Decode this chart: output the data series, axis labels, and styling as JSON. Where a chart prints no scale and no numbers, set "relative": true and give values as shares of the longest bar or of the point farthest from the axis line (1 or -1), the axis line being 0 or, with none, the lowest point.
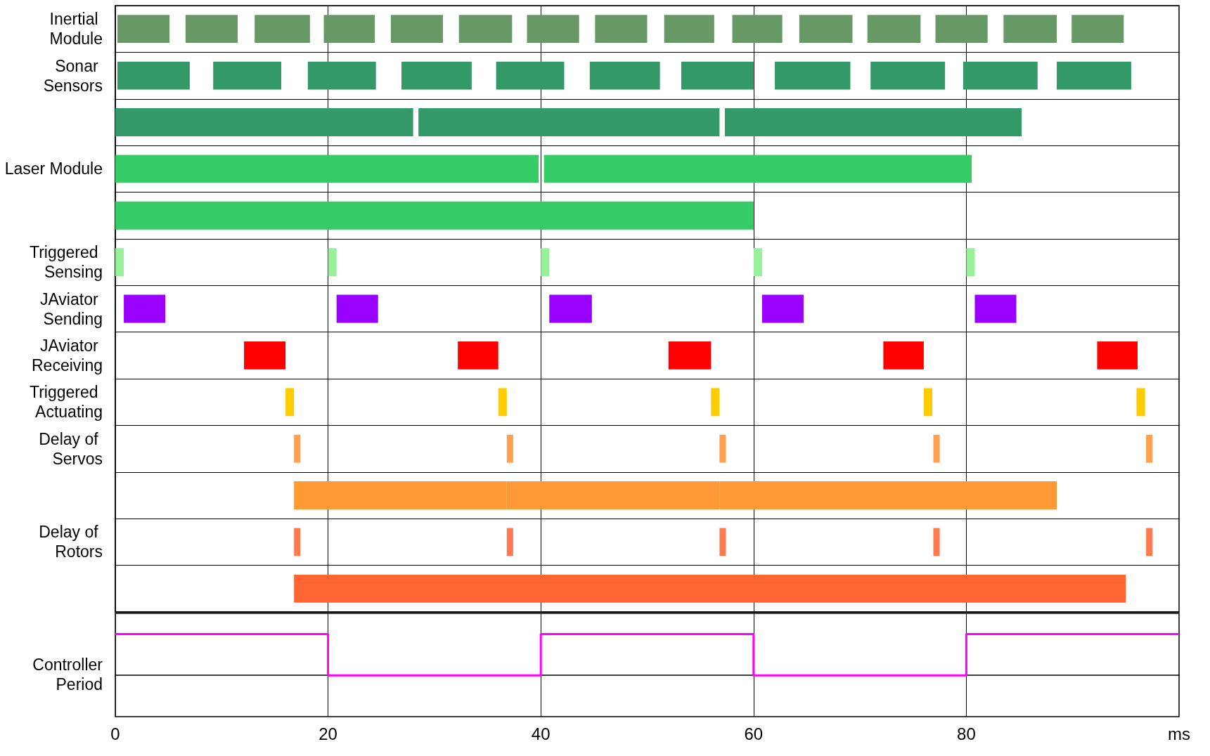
{
  "chart_data": [
    {
      "type": "bar",
      "orientation": "horizontal",
      "categories": [
        "Inertial Module",
        "Sonar Sensors",
        null,
        "Laser Module",
        null,
        "Triggered Sensing",
        "JAviator Sending",
        "JAviator Receiving",
        "Triggered Actuating",
        "Delay of Servos",
        null,
        "Delay of Rotors",
        null
      ],
      "series": [
        {
          "values": [
            4.9,
            6.8,
            28,
            39.8,
            60,
            0.8,
            3.9,
            3.9,
            0.8,
            0.6,
            20,
            0.6,
            78.2
          ],
          "base": [
            0.2,
            0.2,
            0,
            0,
            0,
            0,
            0.8,
            12.1,
            16,
            16.8,
            16.8,
            16.8,
            16.8
          ],
          "colors": [
            "#679966",
            "#339966",
            "#339966",
            "#33cc66",
            "#33cc66",
            "#98f098",
            "#9900ff",
            "#ff0000",
            "#ffcc00",
            "#ffa050",
            "#ff9933",
            "#ff7a50",
            "#ff6633"
          ]
        },
        {
          "values": [
            4.9,
            6.4,
            28.3,
            40.2,
            null,
            0.8,
            3.9,
            3.8,
            0.8,
            0.6,
            20,
            0.6,
            null
          ],
          "base": [
            6.6,
            9.2,
            28.5,
            40.3,
            null,
            20,
            20.8,
            32.2,
            36,
            36.8,
            36.8,
            36.8,
            null
          ],
          "colors": [
            "#679966",
            "#339966",
            "#339966",
            "#33cc66",
            null,
            "#98f098",
            "#9900ff",
            "#ff0000",
            "#ffcc00",
            "#ffa050",
            "#ff9933",
            "#ff7a50",
            null
          ]
        },
        {
          "values": [
            5.2,
            6.4,
            27.9,
            null,
            null,
            0.8,
            4,
            4,
            0.8,
            0.6,
            31.7,
            0.6,
            null
          ],
          "base": [
            13.1,
            18.1,
            57.3,
            null,
            null,
            40,
            40.8,
            52,
            56,
            56.8,
            56.8,
            56.8,
            null
          ],
          "colors": [
            "#679966",
            "#339966",
            "#339966",
            null,
            null,
            "#98f098",
            "#9900ff",
            "#ff0000",
            "#ffcc00",
            "#ffa050",
            "#ff9933",
            "#ff7a50",
            null
          ]
        },
        {
          "values": [
            4.8,
            6.6,
            null,
            null,
            null,
            0.8,
            3.9,
            3.8,
            0.8,
            0.6,
            null,
            0.6,
            null
          ],
          "base": [
            19.6,
            26.9,
            null,
            null,
            null,
            60,
            60.8,
            72.2,
            76,
            76.9,
            null,
            76.9,
            null
          ],
          "colors": [
            "#679966",
            "#339966",
            null,
            null,
            null,
            "#98f098",
            "#9900ff",
            "#ff0000",
            "#ffcc00",
            "#ffa050",
            null,
            "#ff7a50",
            null
          ]
        },
        {
          "values": [
            4.9,
            6.4,
            null,
            null,
            null,
            0.8,
            3.9,
            3.8,
            0.8,
            0.6,
            null,
            0.6,
            null
          ],
          "base": [
            25.9,
            35.8,
            null,
            null,
            null,
            80,
            80.8,
            92.3,
            96,
            96.9,
            null,
            96.9,
            null
          ],
          "colors": [
            "#679966",
            "#339966",
            null,
            null,
            null,
            "#98f098",
            "#9900ff",
            "#ff0000",
            "#ffcc00",
            "#ffa050",
            null,
            "#ff7a50",
            null
          ]
        },
        {
          "values": [
            5,
            6.6,
            null,
            null,
            null,
            null,
            null,
            null,
            null,
            null,
            null,
            null,
            null
          ],
          "base": [
            32.3,
            44.6,
            null,
            null,
            null,
            null,
            null,
            null,
            null,
            null,
            null,
            null,
            null
          ],
          "colors": [
            "#679966",
            "#339966",
            null,
            null,
            null,
            null,
            null,
            null,
            null,
            null,
            null,
            null,
            null
          ]
        },
        {
          "values": [
            4.9,
            6.8,
            null,
            null,
            null,
            null,
            null,
            null,
            null,
            null,
            null,
            null,
            null
          ],
          "base": [
            38.7,
            53.2,
            null,
            null,
            null,
            null,
            null,
            null,
            null,
            null,
            null,
            null,
            null
          ],
          "colors": [
            "#679966",
            "#339966",
            null,
            null,
            null,
            null,
            null,
            null,
            null,
            null,
            null,
            null,
            null
          ]
        },
        {
          "values": [
            4.9,
            7.1,
            null,
            null,
            null,
            null,
            null,
            null,
            null,
            null,
            null,
            null,
            null
          ],
          "base": [
            45.1,
            62,
            null,
            null,
            null,
            null,
            null,
            null,
            null,
            null,
            null,
            null,
            null
          ],
          "colors": [
            "#679966",
            "#339966",
            null,
            null,
            null,
            null,
            null,
            null,
            null,
            null,
            null,
            null,
            null
          ]
        },
        {
          "values": [
            4.7,
            7,
            null,
            null,
            null,
            null,
            null,
            null,
            null,
            null,
            null,
            null,
            null
          ],
          "base": [
            51.6,
            71,
            null,
            null,
            null,
            null,
            null,
            null,
            null,
            null,
            null,
            null,
            null
          ],
          "colors": [
            "#679966",
            "#339966",
            null,
            null,
            null,
            null,
            null,
            null,
            null,
            null,
            null,
            null,
            null
          ]
        },
        {
          "values": [
            4.7,
            7,
            null,
            null,
            null,
            null,
            null,
            null,
            null,
            null,
            null,
            null,
            null
          ],
          "base": [
            58,
            79.7,
            null,
            null,
            null,
            null,
            null,
            null,
            null,
            null,
            null,
            null,
            null
          ],
          "colors": [
            "#679966",
            "#339966",
            null,
            null,
            null,
            null,
            null,
            null,
            null,
            null,
            null,
            null,
            null
          ]
        },
        {
          "values": [
            5,
            7,
            null,
            null,
            null,
            null,
            null,
            null,
            null,
            null,
            null,
            null,
            null
          ],
          "base": [
            64.3,
            88.5,
            null,
            null,
            null,
            null,
            null,
            null,
            null,
            null,
            null,
            null,
            null
          ],
          "colors": [
            "#679966",
            "#339966",
            null,
            null,
            null,
            null,
            null,
            null,
            null,
            null,
            null,
            null,
            null
          ]
        },
        {
          "values": [
            5,
            null,
            null,
            null,
            null,
            null,
            null,
            null,
            null,
            null,
            null,
            null,
            null
          ],
          "base": [
            70.7,
            null,
            null,
            null,
            null,
            null,
            null,
            null,
            null,
            null,
            null,
            null,
            null
          ],
          "color": "#679966"
        },
        {
          "values": [
            4.9,
            null,
            null,
            null,
            null,
            null,
            null,
            null,
            null,
            null,
            null,
            null,
            null
          ],
          "base": [
            77.1,
            null,
            null,
            null,
            null,
            null,
            null,
            null,
            null,
            null,
            null,
            null,
            null
          ],
          "color": "#679966"
        },
        {
          "values": [
            5,
            null,
            null,
            null,
            null,
            null,
            null,
            null,
            null,
            null,
            null,
            null,
            null
          ],
          "base": [
            83.5,
            null,
            null,
            null,
            null,
            null,
            null,
            null,
            null,
            null,
            null,
            null,
            null
          ],
          "color": "#679966"
        },
        {
          "values": [
            4.9,
            null,
            null,
            null,
            null,
            null,
            null,
            null,
            null,
            null,
            null,
            null,
            null
          ],
          "base": [
            89.9,
            null,
            null,
            null,
            null,
            null,
            null,
            null,
            null,
            null,
            null,
            null,
            null
          ],
          "color": "#679966"
        }
      ],
      "xlim": [
        0,
        100
      ],
      "xticks": [
        0,
        20,
        40,
        60,
        80
      ],
      "grid": true,
      "tick_labels": "y"
    },
    {
      "type": "step",
      "relative": true,
      "ylabel": "Controller Period",
      "xlabel": "ms",
      "x": [
        0,
        20,
        40,
        60,
        80,
        100
      ],
      "series": [
        {
          "color": "#ff00ff",
          "values": [
            1,
            0,
            1,
            0,
            1,
            1
          ]
        }
      ],
      "xlim": [
        0,
        100
      ],
      "xticks": [
        0,
        20,
        40,
        60,
        80
      ],
      "grid": "x",
      "marker": "none"
    }
  ]
}
